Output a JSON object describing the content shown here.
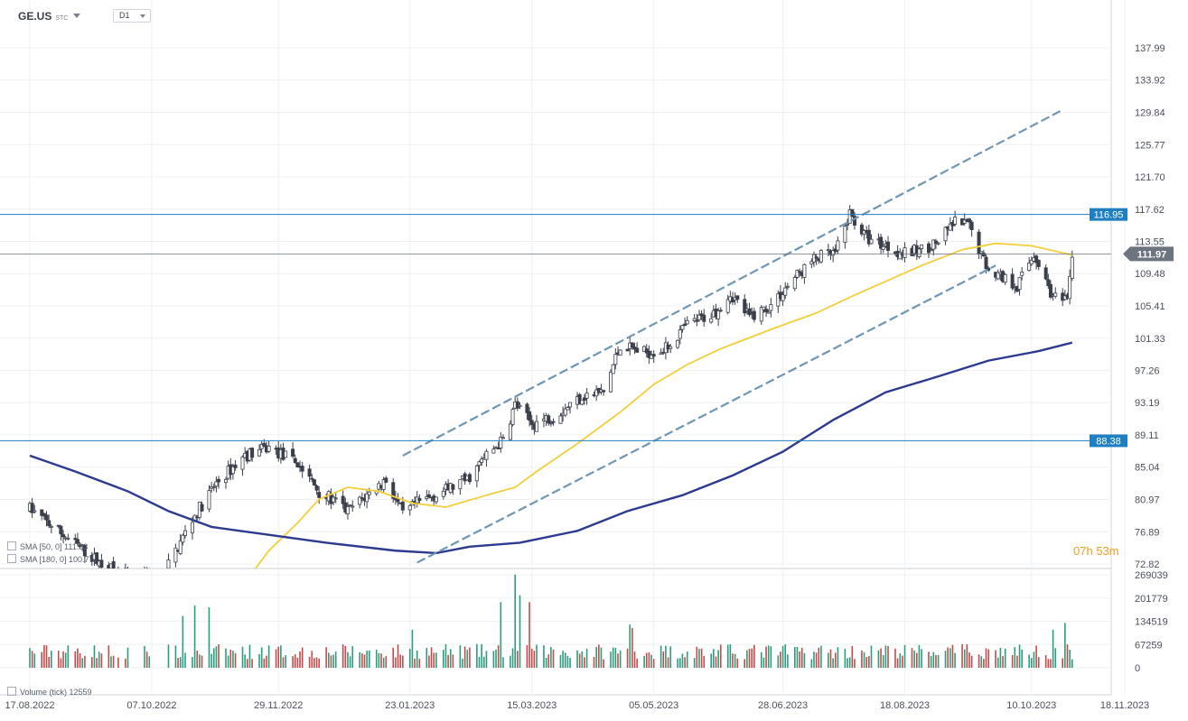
{
  "header": {
    "symbol": "GE.US",
    "symbol_suffix": "STC",
    "timeframe": "D1"
  },
  "countdown": {
    "h": "07",
    "h_unit": "h",
    "m": "53",
    "m_unit": "m"
  },
  "legend": {
    "sma50": "SMA [50, 0] 111.83",
    "sma180": "SMA [180, 0] 100.77",
    "volume": "Volume (tick) 12559"
  },
  "colors": {
    "bull": "#2a9d7e",
    "bear": "#c64a4a",
    "candle": "#3a3f4a",
    "sma50": "#f2cf3a",
    "sma180": "#2c3a8f",
    "hline": "#1f7fc1",
    "channel": "#6f96b3",
    "last_price": "#6c7480"
  },
  "chart_data": [
    {
      "type": "candlestick",
      "title": "",
      "x_tick_labels": [
        "17.08.2022",
        "07.10.2022",
        "29.11.2022",
        "23.01.2023",
        "15.03.2023",
        "05.05.2023",
        "28.06.2023",
        "18.08.2023",
        "10.10.2023",
        "18.11.2023"
      ],
      "y_tick_labels": [
        "137.99",
        "133.92",
        "129.84",
        "125.77",
        "121.70",
        "117.62",
        "113.55",
        "109.48",
        "105.41",
        "101.33",
        "97.26",
        "93.19",
        "89.11",
        "85.04",
        "80.97",
        "76.89",
        "72.82"
      ],
      "ylim": [
        72.82,
        137.99
      ],
      "horizontal_levels": [
        {
          "label": "116.95",
          "value": 116.95
        },
        {
          "label": "88.38",
          "value": 88.38
        }
      ],
      "last_price": {
        "label": "111.97",
        "value": 111.97
      },
      "price_path": [
        [
          "2022-08-17",
          79.8
        ],
        [
          "2022-08-31",
          76.5
        ],
        [
          "2022-09-15",
          73.0
        ],
        [
          "2022-09-30",
          70.5
        ],
        [
          "2022-10-12",
          71.5
        ],
        [
          "2022-10-24",
          78.5
        ],
        [
          "2022-11-03",
          83.0
        ],
        [
          "2022-11-15",
          86.5
        ],
        [
          "2022-11-25",
          87.5
        ],
        [
          "2022-12-07",
          85.5
        ],
        [
          "2022-12-16",
          82.0
        ],
        [
          "2022-12-28",
          79.5
        ],
        [
          "2023-01-05",
          81.5
        ],
        [
          "2023-01-13",
          83.5
        ],
        [
          "2023-01-20",
          79.0
        ],
        [
          "2023-01-26",
          80.5
        ],
        [
          "2023-02-06",
          82.0
        ],
        [
          "2023-02-16",
          83.5
        ],
        [
          "2023-02-24",
          86.5
        ],
        [
          "2023-03-03",
          88.5
        ],
        [
          "2023-03-08",
          93.0
        ],
        [
          "2023-03-15",
          90.5
        ],
        [
          "2023-03-24",
          91.5
        ],
        [
          "2023-04-05",
          94.0
        ],
        [
          "2023-04-14",
          94.5
        ],
        [
          "2023-04-21",
          100.5
        ],
        [
          "2023-05-01",
          99.5
        ],
        [
          "2023-05-10",
          100.0
        ],
        [
          "2023-05-19",
          103.0
        ],
        [
          "2023-05-30",
          104.5
        ],
        [
          "2023-06-06",
          107.0
        ],
        [
          "2023-06-14",
          104.0
        ],
        [
          "2023-06-23",
          105.5
        ],
        [
          "2023-07-03",
          109.0
        ],
        [
          "2023-07-12",
          111.5
        ],
        [
          "2023-07-20",
          112.0
        ],
        [
          "2023-07-26",
          117.0
        ],
        [
          "2023-08-02",
          114.0
        ],
        [
          "2023-08-10",
          113.0
        ],
        [
          "2023-08-18",
          112.0
        ],
        [
          "2023-08-25",
          112.5
        ],
        [
          "2023-09-01",
          113.5
        ],
        [
          "2023-09-08",
          116.0
        ],
        [
          "2023-09-14",
          115.5
        ],
        [
          "2023-09-21",
          110.5
        ],
        [
          "2023-09-28",
          109.0
        ],
        [
          "2023-10-04",
          108.0
        ],
        [
          "2023-10-11",
          112.0
        ],
        [
          "2023-10-19",
          106.5
        ],
        [
          "2023-10-25",
          105.8
        ],
        [
          "2023-10-27",
          112.0
        ]
      ],
      "sma50": [
        [
          "2022-11-15",
          70.5
        ],
        [
          "2022-11-25",
          74.5
        ],
        [
          "2022-12-07",
          78.0
        ],
        [
          "2022-12-16",
          81.0
        ],
        [
          "2022-12-28",
          82.5
        ],
        [
          "2023-01-10",
          82.0
        ],
        [
          "2023-01-24",
          80.5
        ],
        [
          "2023-02-07",
          80.0
        ],
        [
          "2023-02-24",
          81.5
        ],
        [
          "2023-03-08",
          82.5
        ],
        [
          "2023-03-17",
          84.5
        ],
        [
          "2023-04-03",
          88.0
        ],
        [
          "2023-04-21",
          92.0
        ],
        [
          "2023-05-05",
          95.5
        ],
        [
          "2023-05-19",
          98.0
        ],
        [
          "2023-06-02",
          100.0
        ],
        [
          "2023-06-15",
          101.5
        ],
        [
          "2023-06-28",
          103.0
        ],
        [
          "2023-07-12",
          104.5
        ],
        [
          "2023-07-26",
          106.5
        ],
        [
          "2023-08-10",
          108.5
        ],
        [
          "2023-08-25",
          110.5
        ],
        [
          "2023-09-11",
          112.5
        ],
        [
          "2023-09-25",
          113.3
        ],
        [
          "2023-10-10",
          113.0
        ],
        [
          "2023-10-27",
          111.83
        ]
      ],
      "sma180": [
        [
          "2022-08-17",
          86.5
        ],
        [
          "2022-09-05",
          84.5
        ],
        [
          "2022-09-27",
          82.0
        ],
        [
          "2022-10-14",
          79.5
        ],
        [
          "2022-11-01",
          77.5
        ],
        [
          "2022-11-25",
          76.5
        ],
        [
          "2022-12-19",
          75.5
        ],
        [
          "2023-01-17",
          74.5
        ],
        [
          "2023-02-03",
          74.2
        ],
        [
          "2023-02-17",
          75.0
        ],
        [
          "2023-03-10",
          75.5
        ],
        [
          "2023-04-03",
          77.0
        ],
        [
          "2023-04-24",
          79.5
        ],
        [
          "2023-05-17",
          81.5
        ],
        [
          "2023-06-07",
          84.0
        ],
        [
          "2023-06-28",
          87.0
        ],
        [
          "2023-07-19",
          91.0
        ],
        [
          "2023-08-10",
          94.5
        ],
        [
          "2023-09-01",
          96.5
        ],
        [
          "2023-09-22",
          98.5
        ],
        [
          "2023-10-13",
          99.7
        ],
        [
          "2023-10-27",
          100.77
        ]
      ],
      "channel_upper": [
        [
          "2023-01-20",
          86.5
        ],
        [
          "2023-10-22",
          130.0
        ]
      ],
      "channel_lower": [
        [
          "2023-01-26",
          73.0
        ],
        [
          "2023-09-25",
          110.5
        ]
      ],
      "volume": {
        "y_tick_labels": [
          "269039",
          "201779",
          "134519",
          "67259",
          "0"
        ],
        "ylim": [
          0,
          269039
        ],
        "typical": 55000,
        "spikes": [
          [
            "2022-10-25",
            180000
          ],
          [
            "2022-10-31",
            175000
          ],
          [
            "2022-10-20",
            150000
          ],
          [
            "2023-03-02",
            190000
          ],
          [
            "2023-03-08",
            270000
          ],
          [
            "2023-03-10",
            210000
          ],
          [
            "2023-03-14",
            190000
          ],
          [
            "2023-01-24",
            110000
          ],
          [
            "2023-04-25",
            125000
          ],
          [
            "2023-04-26",
            115000
          ],
          [
            "2023-10-24",
            130000
          ],
          [
            "2023-10-19",
            110000
          ]
        ]
      }
    }
  ]
}
